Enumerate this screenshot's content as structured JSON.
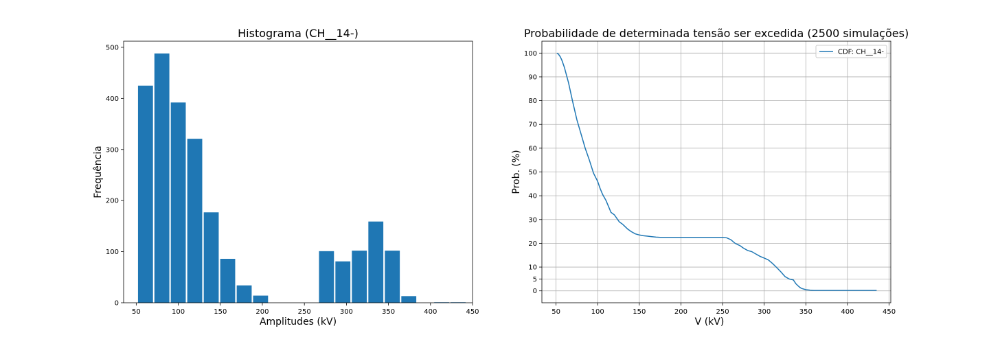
{
  "chart_data": [
    {
      "type": "bar",
      "title": "Histograma (CH__14-)",
      "xlabel": "Amplitudes (kV)",
      "ylabel": "Frequência",
      "xlim": [
        35,
        450
      ],
      "ylim": [
        0,
        512
      ],
      "xticks": [
        50,
        100,
        150,
        200,
        250,
        300,
        350,
        400,
        450
      ],
      "yticks": [
        0,
        100,
        200,
        300,
        400,
        500
      ],
      "color": "#1f77b4",
      "bin_width": 19.6,
      "bins": [
        {
          "x": 61,
          "value": 425
        },
        {
          "x": 80.5,
          "value": 488
        },
        {
          "x": 100,
          "value": 392
        },
        {
          "x": 119.6,
          "value": 321
        },
        {
          "x": 139.2,
          "value": 177
        },
        {
          "x": 158.8,
          "value": 86
        },
        {
          "x": 178.4,
          "value": 34
        },
        {
          "x": 197.9,
          "value": 14
        },
        {
          "x": 217.5,
          "value": 0
        },
        {
          "x": 237.1,
          "value": 0
        },
        {
          "x": 256.7,
          "value": 0
        },
        {
          "x": 276.3,
          "value": 101
        },
        {
          "x": 295.8,
          "value": 81
        },
        {
          "x": 315.4,
          "value": 102
        },
        {
          "x": 335,
          "value": 159
        },
        {
          "x": 354.6,
          "value": 102
        },
        {
          "x": 374.2,
          "value": 13
        },
        {
          "x": 393.8,
          "value": 0
        },
        {
          "x": 413.3,
          "value": 1
        },
        {
          "x": 432.9,
          "value": 1
        }
      ]
    },
    {
      "type": "line",
      "title": "Probabilidade de determinada tensão ser excedida (2500 simulações)",
      "xlabel": "V (kV)",
      "ylabel": "Prob. (%)",
      "xlim": [
        33,
        452
      ],
      "ylim": [
        -5,
        105
      ],
      "xticks": [
        50,
        100,
        150,
        200,
        250,
        300,
        350,
        400,
        450
      ],
      "yticks": [
        0,
        5,
        10,
        20,
        30,
        40,
        50,
        60,
        70,
        80,
        90,
        100
      ],
      "grid": true,
      "legend": {
        "position": "top-right",
        "entries": [
          "CDF: CH__14-"
        ]
      },
      "series": [
        {
          "name": "CDF: CH__14-",
          "color": "#1f77b4",
          "x": [
            51,
            53,
            55,
            57,
            60,
            65,
            70,
            75,
            80,
            85,
            90,
            95,
            100,
            103,
            106,
            110,
            113,
            116,
            120,
            123,
            126,
            130,
            133,
            136,
            140,
            145,
            150,
            155,
            160,
            165,
            170,
            175,
            180,
            185,
            190,
            200,
            210,
            220,
            230,
            240,
            250,
            255,
            260,
            265,
            268,
            271,
            275,
            280,
            285,
            290,
            295,
            300,
            305,
            310,
            315,
            320,
            325,
            330,
            335,
            338,
            341,
            343,
            345,
            350,
            355,
            360,
            365,
            370,
            380,
            400,
            420,
            435
          ],
          "y": [
            100,
            99.5,
            98.5,
            97,
            94,
            87.5,
            79.5,
            72,
            66,
            60,
            55,
            49.5,
            46,
            43,
            40.5,
            38,
            35.5,
            33,
            32,
            30.5,
            29,
            28,
            27,
            26,
            25,
            24,
            23.5,
            23.2,
            23,
            22.8,
            22.6,
            22.5,
            22.5,
            22.5,
            22.5,
            22.5,
            22.5,
            22.5,
            22.5,
            22.5,
            22.5,
            22.3,
            21.5,
            20,
            19.5,
            19,
            18,
            17,
            16.5,
            15.5,
            14.5,
            13.8,
            13,
            11.5,
            9.8,
            8,
            6,
            5,
            4.6,
            3,
            2,
            1.4,
            1,
            0.5,
            0.3,
            0.2,
            0.2,
            0.2,
            0.2,
            0.2,
            0.2,
            0.2
          ]
        }
      ]
    }
  ]
}
